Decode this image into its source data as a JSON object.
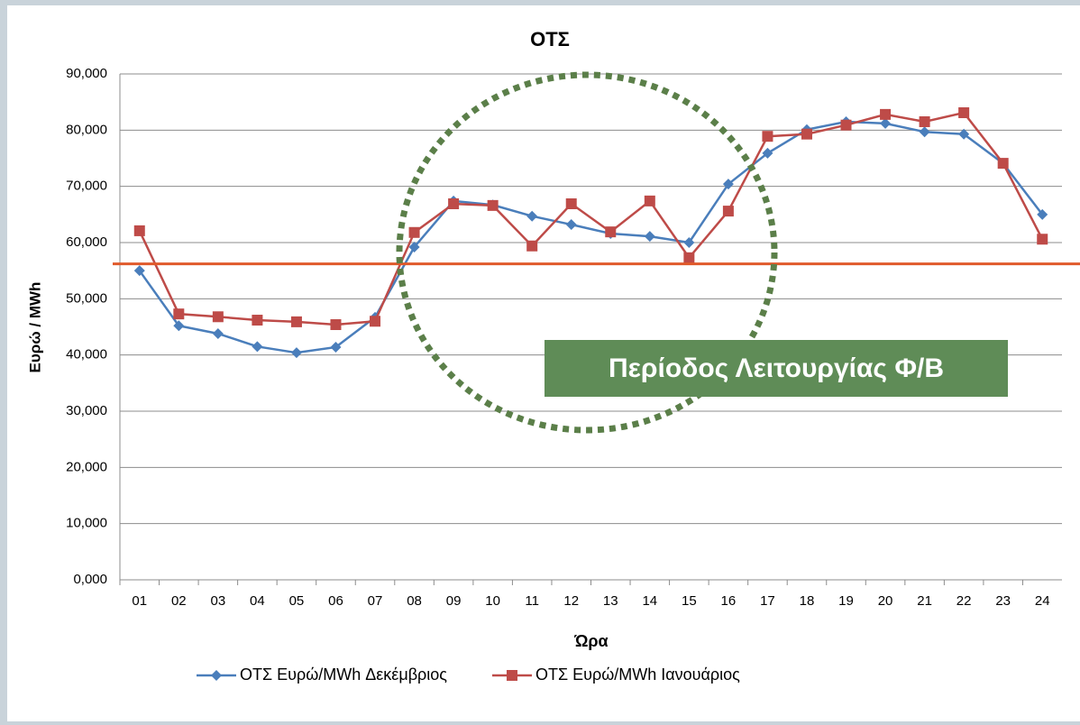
{
  "chart_data": {
    "type": "line",
    "title": "ΟΤΣ",
    "xlabel": "Ώρα",
    "ylabel": "Ευρώ / MWh",
    "categories": [
      "01",
      "02",
      "03",
      "04",
      "05",
      "06",
      "07",
      "08",
      "09",
      "10",
      "11",
      "12",
      "13",
      "14",
      "15",
      "16",
      "17",
      "18",
      "19",
      "20",
      "21",
      "22",
      "23",
      "24"
    ],
    "series": [
      {
        "name": "ΟΤΣ Ευρώ/MWh Δεκέμβριος",
        "color": "#4a7ebb",
        "marker": "diamond",
        "values": [
          55.0,
          45.2,
          43.8,
          41.5,
          40.4,
          41.4,
          46.7,
          59.2,
          67.4,
          66.7,
          64.7,
          63.2,
          61.6,
          61.1,
          60.0,
          70.4,
          75.9,
          80.1,
          81.5,
          81.2,
          79.7,
          79.3,
          74.1,
          65.0
        ]
      },
      {
        "name": "ΟΤΣ Ευρώ/MWh Ιανουάριος",
        "color": "#be4b48",
        "marker": "square",
        "values": [
          62.1,
          47.3,
          46.8,
          46.2,
          45.9,
          45.4,
          46.0,
          61.8,
          66.9,
          66.6,
          59.4,
          66.9,
          61.9,
          67.4,
          57.3,
          65.6,
          78.9,
          79.3,
          80.9,
          82.8,
          81.5,
          83.1,
          74.1,
          60.6
        ]
      }
    ],
    "ylim": [
      0,
      90
    ],
    "yticks": [
      {
        "value": 0,
        "label": "0,000"
      },
      {
        "value": 10,
        "label": "10,000"
      },
      {
        "value": 20,
        "label": "20,000"
      },
      {
        "value": 30,
        "label": "30,000"
      },
      {
        "value": 40,
        "label": "40,000"
      },
      {
        "value": 50,
        "label": "50,000"
      },
      {
        "value": 60,
        "label": "60,000"
      },
      {
        "value": 70,
        "label": "70,000"
      },
      {
        "value": 80,
        "label": "80,000"
      },
      {
        "value": 90,
        "label": "90,000"
      }
    ],
    "grid": true,
    "reference_line": {
      "value": 56.2,
      "color": "#e05a2b"
    },
    "annotation": "Περίοδος Λειτουργίας Φ/Β",
    "legend": "bottom"
  }
}
